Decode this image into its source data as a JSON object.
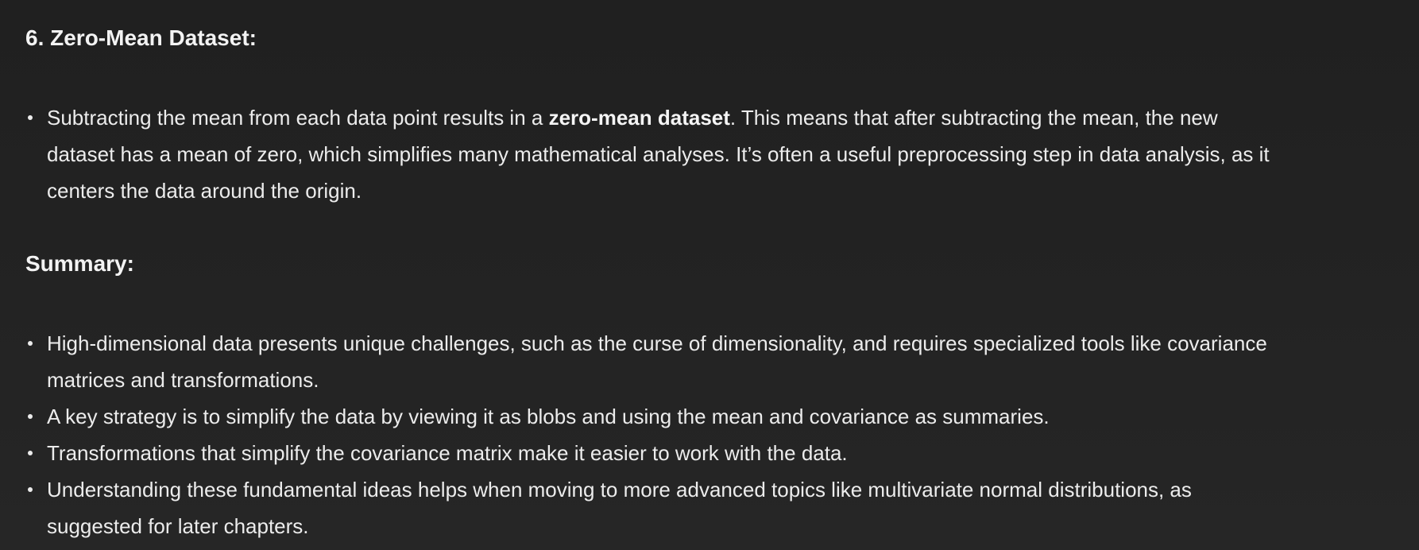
{
  "section1": {
    "heading": "6. Zero-Mean Dataset:",
    "bullet": {
      "line1_before": "Subtracting the mean from each data point results in a ",
      "line1_bold": "zero-mean dataset",
      "line1_after": ". This means that after subtracting the mean, the new",
      "line2": "dataset has a mean of zero, which simplifies many mathematical analyses. It’s often a useful preprocessing step in data analysis, as it",
      "line3": "centers the data around the origin."
    }
  },
  "summary": {
    "heading": "Summary:",
    "items": [
      {
        "line1": "High-dimensional data presents unique challenges, such as the curse of dimensionality, and requires specialized tools like covariance",
        "line2": "matrices and transformations."
      },
      {
        "line1": "A key strategy is to simplify the data by viewing it as blobs and using the mean and covariance as summaries."
      },
      {
        "line1": "Transformations that simplify the covariance matrix make it easier to work with the data."
      },
      {
        "line1": "Understanding these fundamental ideas helps when moving to more advanced topics like multivariate normal distributions, as",
        "line2": "suggested for later chapters."
      }
    ]
  },
  "theme": {
    "background": "#212121",
    "text": "#ececec"
  }
}
